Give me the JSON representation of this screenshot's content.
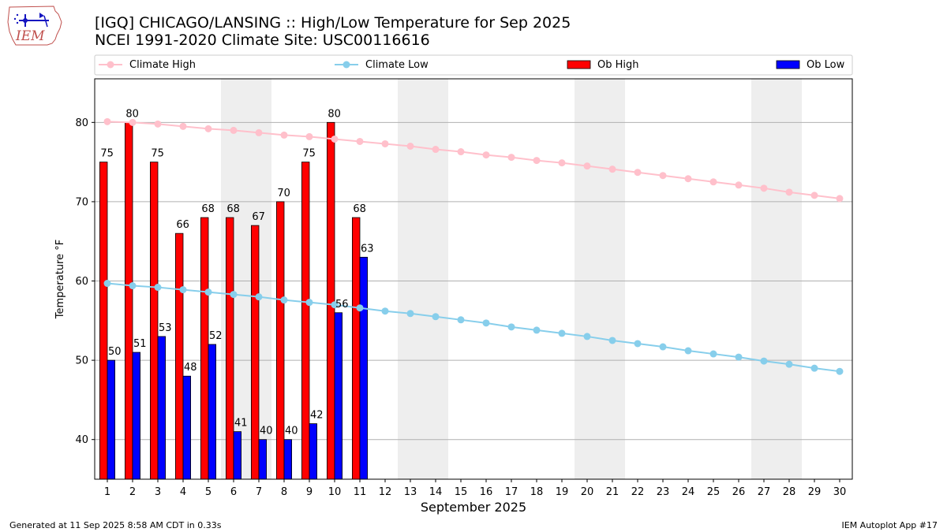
{
  "header": {
    "title": "[IGQ] CHICAGO/LANSING :: High/Low Temperature for Sep 2025",
    "subtitle": "NCEI 1991-2020 Climate Site: USC00116616",
    "logo_text": "IEM"
  },
  "footer": {
    "generated": "Generated at 11 Sep 2025 8:58 AM CDT in 0.33s",
    "app": "IEM Autoplot App #17"
  },
  "colors": {
    "climate_high": "#ffc0cb",
    "climate_low": "#87ceeb",
    "ob_high": "#ff0000",
    "ob_low": "#0000ff",
    "weekend_band": "#eeeeee",
    "grid": "#b0b0b0"
  },
  "chart_data": {
    "type": "bar",
    "xlabel": "September 2025",
    "ylabel": "Temperature °F",
    "xlim": [
      0.5,
      30.5
    ],
    "ylim": [
      35,
      85.5
    ],
    "yticks": [
      40,
      50,
      60,
      70,
      80
    ],
    "grid": "horizontal",
    "legend_position": "top",
    "weekend_bands": [
      [
        6,
        7
      ],
      [
        13,
        14
      ],
      [
        20,
        21
      ],
      [
        27,
        28
      ]
    ],
    "days": [
      1,
      2,
      3,
      4,
      5,
      6,
      7,
      8,
      9,
      10,
      11,
      12,
      13,
      14,
      15,
      16,
      17,
      18,
      19,
      20,
      21,
      22,
      23,
      24,
      25,
      26,
      27,
      28,
      29,
      30
    ],
    "series": [
      {
        "name": "Climate High",
        "kind": "line",
        "values": [
          80.1,
          80.0,
          79.8,
          79.5,
          79.2,
          79.0,
          78.7,
          78.4,
          78.2,
          77.9,
          77.6,
          77.3,
          77.0,
          76.6,
          76.3,
          75.9,
          75.6,
          75.2,
          74.9,
          74.5,
          74.1,
          73.7,
          73.3,
          72.9,
          72.5,
          72.1,
          71.7,
          71.2,
          70.8,
          70.4
        ]
      },
      {
        "name": "Climate Low",
        "kind": "line",
        "values": [
          59.7,
          59.4,
          59.2,
          58.9,
          58.6,
          58.3,
          58.0,
          57.6,
          57.3,
          57.0,
          56.6,
          56.2,
          55.9,
          55.5,
          55.1,
          54.7,
          54.2,
          53.8,
          53.4,
          53.0,
          52.5,
          52.1,
          51.7,
          51.2,
          50.8,
          50.4,
          49.9,
          49.5,
          49.0,
          48.6
        ]
      },
      {
        "name": "Ob High",
        "kind": "bar",
        "values": [
          75,
          80,
          75,
          66,
          68,
          68,
          67,
          70,
          75,
          80,
          68
        ]
      },
      {
        "name": "Ob Low",
        "kind": "bar",
        "values": [
          50,
          51,
          53,
          48,
          52,
          41,
          40,
          40,
          42,
          56,
          63
        ]
      }
    ]
  }
}
